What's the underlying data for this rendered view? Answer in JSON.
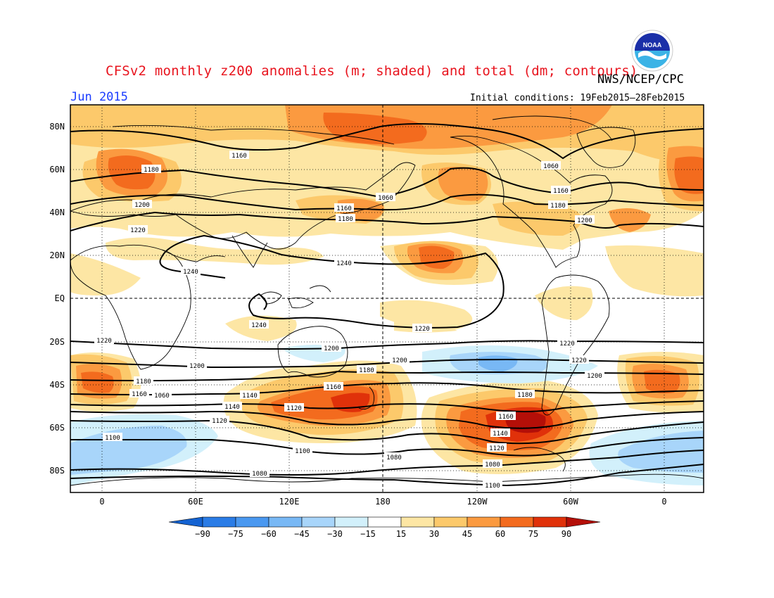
{
  "header": {
    "title": "CFSv2 monthly z200 anomalies (m; shaded) and total (dm; contours)",
    "agency": "NWS/NCEP/CPC",
    "month": "Jun 2015",
    "initial_conditions": "Initial conditions: 19Feb2015–28Feb2015",
    "logo_text": "NOAA"
  },
  "map": {
    "lat_labels": [
      "80N",
      "60N",
      "40N",
      "20N",
      "EQ",
      "20S",
      "40S",
      "60S",
      "80S"
    ],
    "lon_labels": [
      "0",
      "60E",
      "120E",
      "180",
      "120W",
      "60W",
      "0"
    ],
    "contour_labels": [
      "1160",
      "1180",
      "1200",
      "1220",
      "1240",
      "1240",
      "1240",
      "1220",
      "1200",
      "1180",
      "1160",
      "1140",
      "1120",
      "1100",
      "1080",
      "1060",
      "1160",
      "1180",
      "1200",
      "1220",
      "1200",
      "1180",
      "1160",
      "1140",
      "1120",
      "1100",
      "1080",
      "1060",
      "1160",
      "1180",
      "1200",
      "1220",
      "1220",
      "1200",
      "1180",
      "1160",
      "1140",
      "1120",
      "1100",
      "1080",
      "1060"
    ]
  },
  "legend": {
    "ticks": [
      "−90",
      "−75",
      "−60",
      "−45",
      "−30",
      "−15",
      "15",
      "30",
      "45",
      "60",
      "75",
      "90"
    ],
    "colors": [
      "#1463d2",
      "#2a7ce6",
      "#4a98f0",
      "#78b8f5",
      "#a8d5fa",
      "#d2f0fb",
      "#ffffff",
      "#fde6a4",
      "#fcc96b",
      "#fb9a40",
      "#f36b1e",
      "#e0310a",
      "#b40f08"
    ]
  },
  "chart_data": {
    "type": "heatmap",
    "variable": "z200 anomaly (m) with total geopotential height contours (dm)",
    "contour_levels_dm": [
      1060,
      1080,
      1100,
      1120,
      1140,
      1160,
      1180,
      1200,
      1220,
      1240
    ],
    "shading_levels_m": [
      -90,
      -75,
      -60,
      -45,
      -30,
      -15,
      15,
      30,
      45,
      60,
      75,
      90
    ],
    "xlim": [
      "0",
      "0"
    ],
    "ylim": [
      "80S",
      "80N"
    ]
  }
}
